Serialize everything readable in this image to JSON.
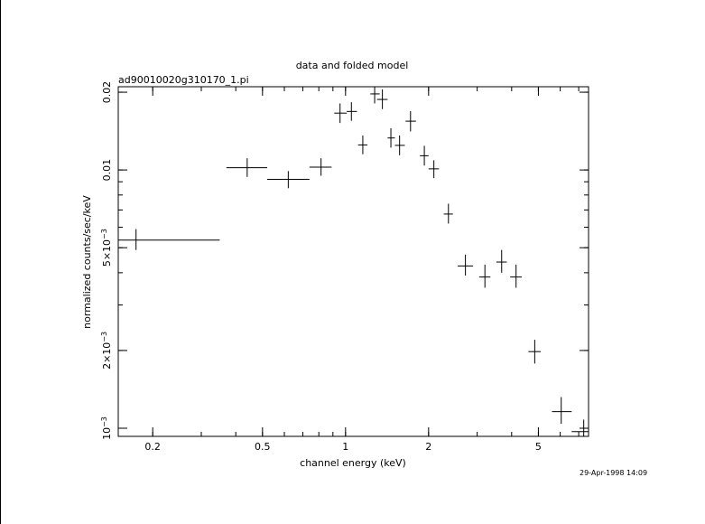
{
  "chart_data": {
    "type": "scatter",
    "title": "data and folded model",
    "subtitle": "ad90010020g310170_1.pi",
    "xlabel": "channel energy (keV)",
    "ylabel": "normalized counts/sec/keV",
    "xscale": "log",
    "yscale": "log",
    "xlim": [
      0.15,
      7.6
    ],
    "ylim": [
      0.00093,
      0.021
    ],
    "x_ticks": [
      {
        "value": 0.2,
        "label": "0.2"
      },
      {
        "value": 0.5,
        "label": "0.5"
      },
      {
        "value": 1,
        "label": "1"
      },
      {
        "value": 2,
        "label": "2"
      },
      {
        "value": 5,
        "label": "5"
      }
    ],
    "y_ticks": [
      {
        "value": 0.001,
        "label": "10",
        "exp": "−3",
        "prefix": ""
      },
      {
        "value": 0.002,
        "label": "2×10",
        "exp": "−3",
        "prefix": ""
      },
      {
        "value": 0.005,
        "label": "5×10",
        "exp": "−3",
        "prefix": ""
      },
      {
        "value": 0.01,
        "label": "0.01",
        "exp": "",
        "prefix": ""
      },
      {
        "value": 0.02,
        "label": "0.02",
        "exp": "",
        "prefix": ""
      }
    ],
    "grid": false,
    "style": "data points with x (bin width) and y (1-sigma) error bars",
    "points": [
      {
        "x": 0.174,
        "xlo": 0.15,
        "xhi": 0.35,
        "y": 0.00535,
        "ylo": 0.0049,
        "yhi": 0.0059
      },
      {
        "x": 0.44,
        "xlo": 0.37,
        "xhi": 0.52,
        "y": 0.0102,
        "ylo": 0.0094,
        "yhi": 0.0111
      },
      {
        "x": 0.62,
        "xlo": 0.52,
        "xhi": 0.74,
        "y": 0.0092,
        "ylo": 0.0085,
        "yhi": 0.0099
      },
      {
        "x": 0.815,
        "xlo": 0.74,
        "xhi": 0.89,
        "y": 0.01025,
        "ylo": 0.0095,
        "yhi": 0.0111
      },
      {
        "x": 0.955,
        "xlo": 0.91,
        "xhi": 1.01,
        "y": 0.0166,
        "ylo": 0.0152,
        "yhi": 0.0181
      },
      {
        "x": 1.05,
        "xlo": 1.01,
        "xhi": 1.1,
        "y": 0.01685,
        "ylo": 0.0155,
        "yhi": 0.0183
      },
      {
        "x": 1.155,
        "xlo": 1.11,
        "xhi": 1.2,
        "y": 0.0125,
        "ylo": 0.0115,
        "yhi": 0.0136
      },
      {
        "x": 1.275,
        "xlo": 1.23,
        "xhi": 1.33,
        "y": 0.0197,
        "ylo": 0.0181,
        "yhi": 0.0214
      },
      {
        "x": 1.36,
        "xlo": 1.3,
        "xhi": 1.42,
        "y": 0.01875,
        "ylo": 0.0172,
        "yhi": 0.0205
      },
      {
        "x": 1.46,
        "xlo": 1.42,
        "xhi": 1.51,
        "y": 0.0133,
        "ylo": 0.0122,
        "yhi": 0.0145
      },
      {
        "x": 1.57,
        "xlo": 1.51,
        "xhi": 1.64,
        "y": 0.01245,
        "ylo": 0.0114,
        "yhi": 0.0136
      },
      {
        "x": 1.72,
        "xlo": 1.65,
        "xhi": 1.8,
        "y": 0.01545,
        "ylo": 0.0141,
        "yhi": 0.0169
      },
      {
        "x": 1.93,
        "xlo": 1.86,
        "xhi": 2.0,
        "y": 0.01135,
        "ylo": 0.0104,
        "yhi": 0.0124
      },
      {
        "x": 2.09,
        "xlo": 2.0,
        "xhi": 2.18,
        "y": 0.0101,
        "ylo": 0.0093,
        "yhi": 0.0109
      },
      {
        "x": 2.36,
        "xlo": 2.27,
        "xhi": 2.45,
        "y": 0.00675,
        "ylo": 0.0062,
        "yhi": 0.0074
      },
      {
        "x": 2.72,
        "xlo": 2.55,
        "xhi": 2.9,
        "y": 0.00425,
        "ylo": 0.0039,
        "yhi": 0.0047
      },
      {
        "x": 3.2,
        "xlo": 3.05,
        "xhi": 3.35,
        "y": 0.00385,
        "ylo": 0.0035,
        "yhi": 0.0043
      },
      {
        "x": 3.68,
        "xlo": 3.52,
        "xhi": 3.84,
        "y": 0.0044,
        "ylo": 0.004,
        "yhi": 0.0049
      },
      {
        "x": 4.15,
        "xlo": 3.95,
        "xhi": 4.35,
        "y": 0.00385,
        "ylo": 0.0035,
        "yhi": 0.0043
      },
      {
        "x": 4.85,
        "xlo": 4.6,
        "xhi": 5.1,
        "y": 0.00198,
        "ylo": 0.00178,
        "yhi": 0.0022
      },
      {
        "x": 6.05,
        "xlo": 5.6,
        "xhi": 6.6,
        "y": 0.00116,
        "ylo": 0.00104,
        "yhi": 0.00132
      },
      {
        "x": 7.3,
        "xlo": 6.6,
        "xhi": 7.6,
        "y": 0.00097,
        "ylo": 0.00088,
        "yhi": 0.00108
      }
    ]
  },
  "footer": {
    "timestamp": "29-Apr-1998 14:09"
  }
}
